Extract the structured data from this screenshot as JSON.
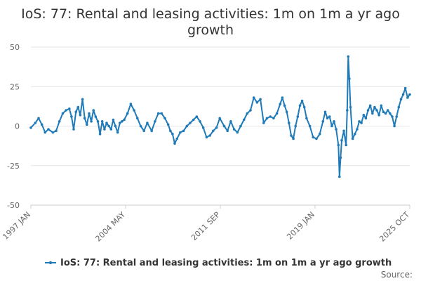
{
  "chart_data": {
    "type": "line",
    "title_lines": [
      "IoS: 77: Rental and leasing activities: 1m on 1m a yr ago",
      "growth"
    ],
    "xlabel": "",
    "ylabel": "",
    "ylim": [
      -50,
      50
    ],
    "y_ticks": [
      50,
      25,
      0,
      -25,
      -50
    ],
    "x_tick_labels": [
      "1997 JAN",
      "2004 MAY",
      "2011 SEP",
      "2019 JAN",
      "2025 OCT"
    ],
    "grid": "horizontal",
    "legend_position": "bottom",
    "source_label": "Source:",
    "colors": {
      "series": "#1f7ab8",
      "grid": "#e6e6e6",
      "axis_text": "#666666"
    },
    "series": [
      {
        "name": "IoS: 77: Rental and leasing activities: 1m on 1m a yr ago growth",
        "points": [
          [
            "1997-01",
            -1
          ],
          [
            "1997-05",
            2
          ],
          [
            "1997-08",
            5
          ],
          [
            "1997-11",
            1
          ],
          [
            "1998-02",
            -4
          ],
          [
            "1998-05",
            -2
          ],
          [
            "1998-09",
            -4
          ],
          [
            "1998-12",
            -3
          ],
          [
            "1999-03",
            3
          ],
          [
            "1999-06",
            8
          ],
          [
            "1999-09",
            10
          ],
          [
            "1999-12",
            11
          ],
          [
            "2000-02",
            6
          ],
          [
            "2000-04",
            -2
          ],
          [
            "2000-06",
            9
          ],
          [
            "2000-08",
            12
          ],
          [
            "2000-10",
            7
          ],
          [
            "2000-12",
            17
          ],
          [
            "2001-02",
            5
          ],
          [
            "2001-04",
            1
          ],
          [
            "2001-06",
            8
          ],
          [
            "2001-08",
            3
          ],
          [
            "2001-10",
            10
          ],
          [
            "2001-12",
            6
          ],
          [
            "2002-02",
            3
          ],
          [
            "2002-04",
            -5
          ],
          [
            "2002-06",
            3
          ],
          [
            "2002-08",
            -2
          ],
          [
            "2002-10",
            2
          ],
          [
            "2002-12",
            0
          ],
          [
            "2003-02",
            -2
          ],
          [
            "2003-04",
            4
          ],
          [
            "2003-06",
            0
          ],
          [
            "2003-08",
            -4
          ],
          [
            "2003-10",
            2
          ],
          [
            "2003-12",
            3
          ],
          [
            "2004-02",
            4
          ],
          [
            "2004-05",
            8
          ],
          [
            "2004-08",
            14
          ],
          [
            "2004-11",
            10
          ],
          [
            "2005-02",
            5
          ],
          [
            "2005-05",
            0
          ],
          [
            "2005-08",
            -3
          ],
          [
            "2005-11",
            2
          ],
          [
            "2006-03",
            -3
          ],
          [
            "2006-06",
            3
          ],
          [
            "2006-09",
            8
          ],
          [
            "2006-12",
            8
          ],
          [
            "2007-03",
            5
          ],
          [
            "2007-06",
            1
          ],
          [
            "2007-08",
            -3
          ],
          [
            "2007-10",
            -5
          ],
          [
            "2007-12",
            -11
          ],
          [
            "2008-02",
            -8
          ],
          [
            "2008-05",
            -4
          ],
          [
            "2008-08",
            -3
          ],
          [
            "2008-11",
            0
          ],
          [
            "2009-02",
            2
          ],
          [
            "2009-05",
            4
          ],
          [
            "2009-08",
            6
          ],
          [
            "2009-11",
            3
          ],
          [
            "2010-02",
            -1
          ],
          [
            "2010-05",
            -7
          ],
          [
            "2010-08",
            -6
          ],
          [
            "2010-11",
            -3
          ],
          [
            "2011-02",
            -1
          ],
          [
            "2011-05",
            5
          ],
          [
            "2011-09",
            0
          ],
          [
            "2011-12",
            -3
          ],
          [
            "2012-03",
            3
          ],
          [
            "2012-06",
            -2
          ],
          [
            "2012-09",
            -4
          ],
          [
            "2012-12",
            0
          ],
          [
            "2013-03",
            4
          ],
          [
            "2013-06",
            8
          ],
          [
            "2013-09",
            10
          ],
          [
            "2013-12",
            18
          ],
          [
            "2014-03",
            15
          ],
          [
            "2014-06",
            17
          ],
          [
            "2014-09",
            2
          ],
          [
            "2014-12",
            5
          ],
          [
            "2015-03",
            6
          ],
          [
            "2015-06",
            5
          ],
          [
            "2015-09",
            8
          ],
          [
            "2015-12",
            14
          ],
          [
            "2016-02",
            18
          ],
          [
            "2016-04",
            13
          ],
          [
            "2016-06",
            9
          ],
          [
            "2016-08",
            2
          ],
          [
            "2016-10",
            -6
          ],
          [
            "2016-12",
            -8
          ],
          [
            "2017-02",
            0
          ],
          [
            "2017-04",
            6
          ],
          [
            "2017-06",
            13
          ],
          [
            "2017-08",
            16
          ],
          [
            "2017-10",
            12
          ],
          [
            "2017-12",
            5
          ],
          [
            "2018-03",
            0
          ],
          [
            "2018-06",
            -7
          ],
          [
            "2018-09",
            -8
          ],
          [
            "2018-12",
            -5
          ],
          [
            "2019-03",
            3
          ],
          [
            "2019-05",
            9
          ],
          [
            "2019-07",
            5
          ],
          [
            "2019-09",
            6
          ],
          [
            "2019-11",
            0
          ],
          [
            "2020-01",
            3
          ],
          [
            "2020-03",
            -2
          ],
          [
            "2020-05",
            -12
          ],
          [
            "2020-06",
            -32
          ],
          [
            "2020-07",
            -20
          ],
          [
            "2020-08",
            -9
          ],
          [
            "2020-10",
            -3
          ],
          [
            "2020-12",
            -12
          ],
          [
            "2021-01",
            10
          ],
          [
            "2021-02",
            44
          ],
          [
            "2021-03",
            30
          ],
          [
            "2021-04",
            12
          ],
          [
            "2021-06",
            -8
          ],
          [
            "2021-08",
            -5
          ],
          [
            "2021-10",
            -2
          ],
          [
            "2021-12",
            3
          ],
          [
            "2022-02",
            2
          ],
          [
            "2022-04",
            7
          ],
          [
            "2022-06",
            5
          ],
          [
            "2022-08",
            10
          ],
          [
            "2022-10",
            13
          ],
          [
            "2022-12",
            8
          ],
          [
            "2023-02",
            12
          ],
          [
            "2023-04",
            10
          ],
          [
            "2023-06",
            7
          ],
          [
            "2023-08",
            13
          ],
          [
            "2023-10",
            9
          ],
          [
            "2023-12",
            8
          ],
          [
            "2024-02",
            10
          ],
          [
            "2024-04",
            8
          ],
          [
            "2024-06",
            6
          ],
          [
            "2024-08",
            0
          ],
          [
            "2024-10",
            6
          ],
          [
            "2024-12",
            12
          ],
          [
            "2025-02",
            17
          ],
          [
            "2025-04",
            20
          ],
          [
            "2025-06",
            24
          ],
          [
            "2025-08",
            18
          ],
          [
            "2025-10",
            20
          ]
        ]
      }
    ]
  }
}
